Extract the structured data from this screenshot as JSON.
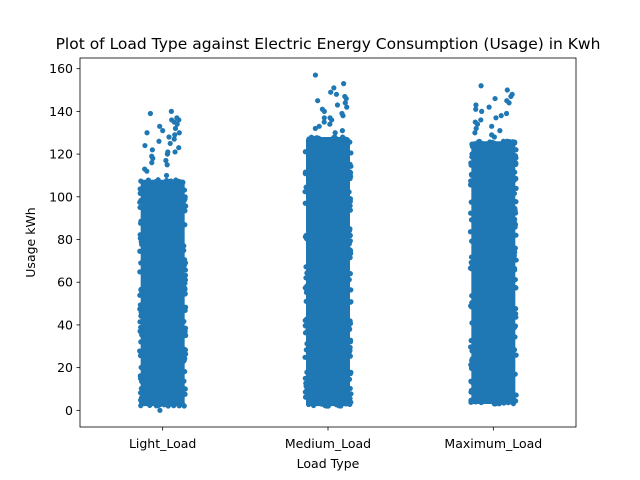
{
  "chart_data": {
    "type": "scatter",
    "subtype": "strip",
    "title": "Plot of Load Type against Electric Energy Consumption (Usage) in Kwh",
    "xlabel": "Load Type",
    "ylabel": "Usage kWh",
    "categories": [
      "Light_Load",
      "Medium_Load",
      "Maximum_Load"
    ],
    "yticks": [
      0,
      20,
      40,
      60,
      80,
      100,
      120,
      140,
      160
    ],
    "ylim": [
      -7.8,
      165
    ],
    "grid": false,
    "legend": "none",
    "marker_color": "#1f77b4",
    "series": [
      {
        "category": "Light_Load",
        "dense_range": [
          2,
          108
        ],
        "upper_points": [
          110,
          112,
          113,
          115,
          116,
          117,
          118,
          119,
          120,
          121,
          121,
          122,
          123,
          124,
          125,
          126,
          127,
          128,
          129,
          130,
          130,
          131,
          132,
          133,
          134,
          135,
          136,
          136,
          137,
          139,
          140
        ],
        "min_point": 0
      },
      {
        "category": "Medium_Load",
        "dense_range": [
          2,
          128
        ],
        "upper_points": [
          130,
          131,
          132,
          133,
          134,
          135,
          136,
          137,
          137,
          138,
          139,
          140,
          141,
          142,
          143,
          144,
          145,
          146,
          147,
          148,
          149,
          151,
          153,
          157
        ],
        "min_point": 2
      },
      {
        "category": "Maximum_Load",
        "dense_range": [
          3,
          126
        ],
        "upper_points": [
          128,
          129,
          130,
          131,
          132,
          133,
          134,
          135,
          136,
          137,
          138,
          139,
          140,
          141,
          142,
          143,
          144,
          145,
          146,
          147,
          148,
          150,
          152
        ],
        "min_point": 3
      }
    ]
  }
}
